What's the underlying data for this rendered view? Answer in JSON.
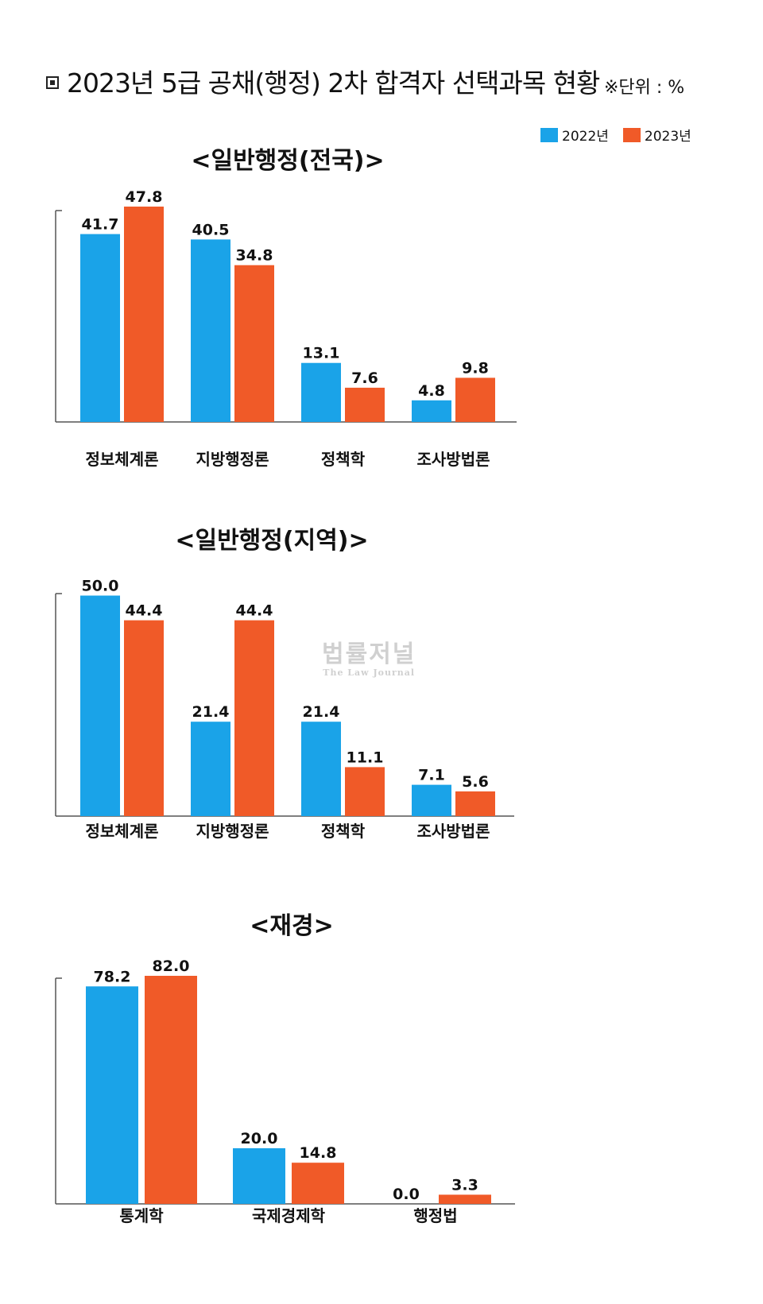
{
  "header": {
    "title": "2023년 5급 공채(행정) 2차 합격자 선택과목 현황",
    "unit": "※단위 : %"
  },
  "legend": {
    "items": [
      {
        "label": "2022년",
        "color": "#1aa3e8"
      },
      {
        "label": "2023년",
        "color": "#f05a28"
      }
    ]
  },
  "watermark": {
    "text_ko": "법률저널",
    "text_en": "The Law Journal"
  },
  "chart_data": [
    {
      "type": "bar",
      "title": "<일반행정(전국)>",
      "categories": [
        "정보체계론",
        "지방행정론",
        "정책학",
        "조사방법론"
      ],
      "series": [
        {
          "name": "2022년",
          "values": [
            41.7,
            40.5,
            13.1,
            4.8
          ]
        },
        {
          "name": "2023년",
          "values": [
            47.8,
            34.8,
            7.6,
            9.8
          ]
        }
      ],
      "ylim": [
        0,
        50
      ],
      "grid": false,
      "legend": "top-right"
    },
    {
      "type": "bar",
      "title": "<일반행정(지역)>",
      "categories": [
        "정보체계론",
        "지방행정론",
        "정책학",
        "조사방법론"
      ],
      "series": [
        {
          "name": "2022년",
          "values": [
            50.0,
            21.4,
            21.4,
            7.1
          ]
        },
        {
          "name": "2023년",
          "values": [
            44.4,
            44.4,
            11.1,
            5.6
          ]
        }
      ],
      "ylim": [
        0,
        50
      ],
      "grid": false,
      "legend": "top-right"
    },
    {
      "type": "bar",
      "title": "<재경>",
      "categories": [
        "통계학",
        "국제경제학",
        "행정법"
      ],
      "series": [
        {
          "name": "2022년",
          "values": [
            78.2,
            20.0,
            0.0
          ]
        },
        {
          "name": "2023년",
          "values": [
            82.0,
            14.8,
            3.3
          ]
        }
      ],
      "ylim": [
        0,
        85
      ],
      "grid": false,
      "legend": "top-right"
    }
  ]
}
